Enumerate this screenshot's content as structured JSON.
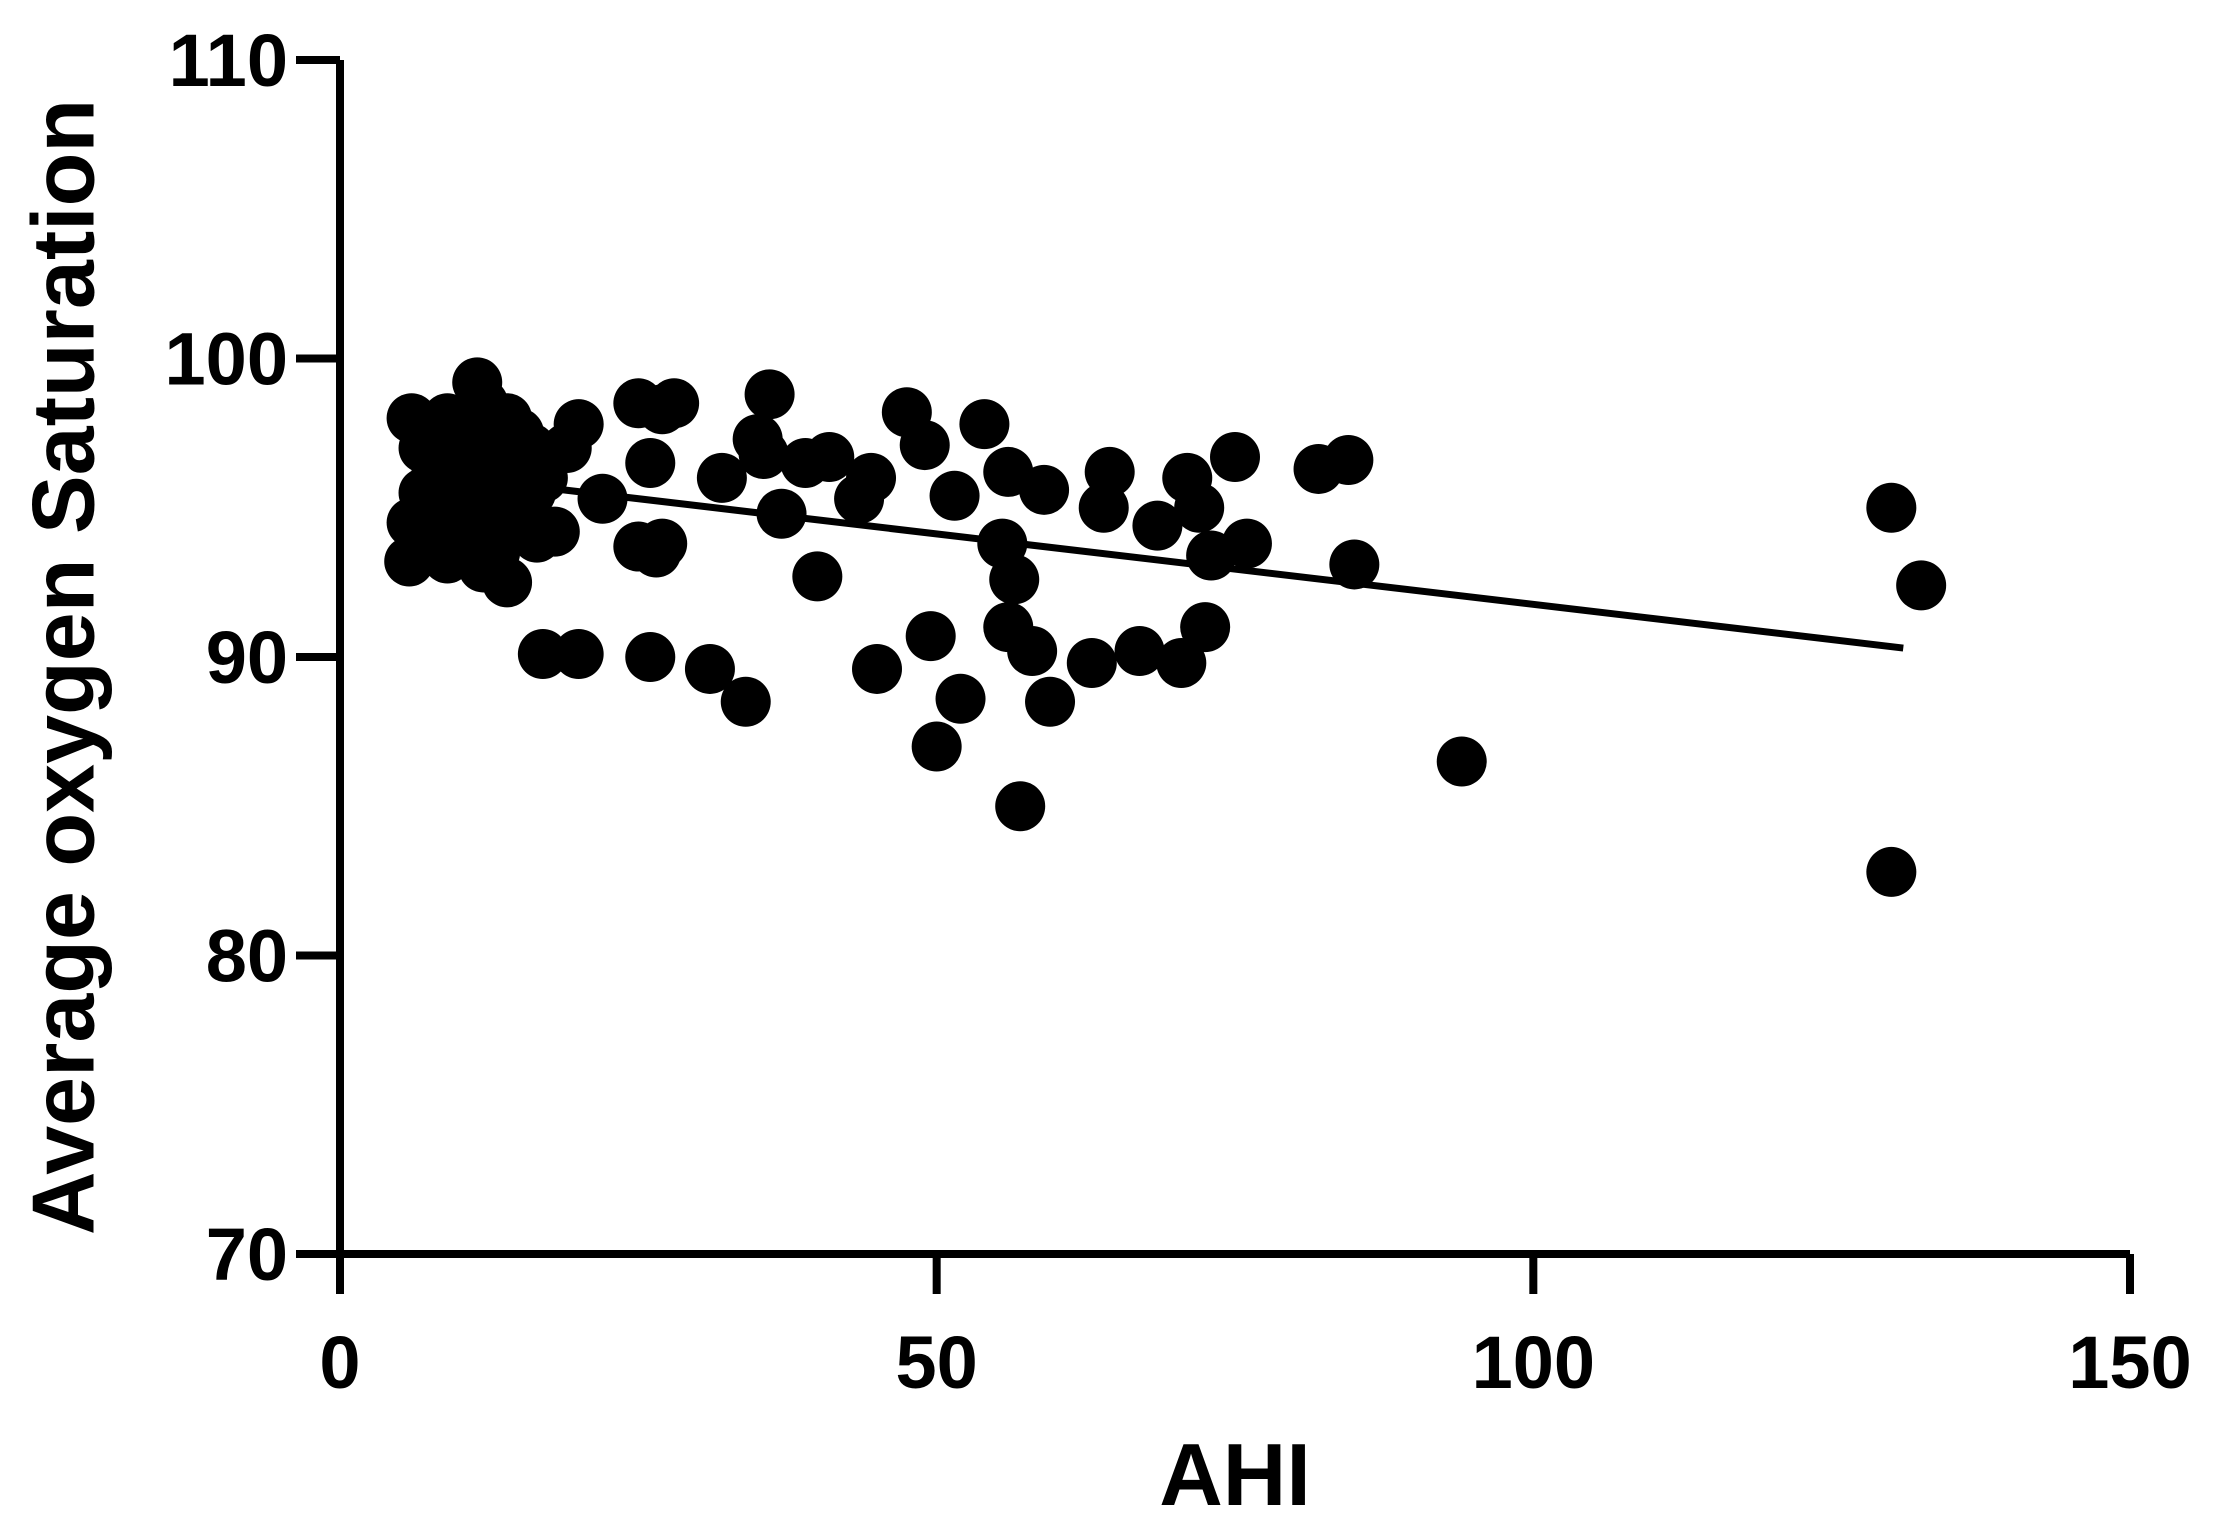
{
  "chart_data": {
    "type": "scatter",
    "title": "",
    "xlabel": "AHI",
    "ylabel": "Average oxygen Saturation",
    "xlim": [
      0,
      150
    ],
    "ylim": [
      70,
      110
    ],
    "x_ticks": [
      0,
      50,
      100,
      150
    ],
    "y_ticks": [
      70,
      80,
      90,
      100,
      110
    ],
    "x_tick_labels": [
      "0",
      "50",
      "100",
      "150"
    ],
    "y_tick_labels": [
      "70",
      "80",
      "90",
      "100",
      "110"
    ],
    "grid": false,
    "legend": "none",
    "marker_color": "#000000",
    "series": [
      {
        "points": [
          [
            6,
            98
          ],
          [
            7,
            97
          ],
          [
            8,
            96.5
          ],
          [
            9,
            98
          ],
          [
            10,
            96
          ],
          [
            11,
            97
          ],
          [
            11.5,
            99.2
          ],
          [
            12,
            98.5
          ],
          [
            13,
            97
          ],
          [
            14,
            98
          ],
          [
            15,
            97.5
          ],
          [
            16,
            97
          ],
          [
            7,
            95.5
          ],
          [
            8,
            95
          ],
          [
            9,
            96
          ],
          [
            10,
            95.5
          ],
          [
            11,
            96
          ],
          [
            12,
            95
          ],
          [
            13,
            96
          ],
          [
            14,
            95.5
          ],
          [
            15,
            96
          ],
          [
            16,
            95.5
          ],
          [
            17,
            96
          ],
          [
            6,
            94.5
          ],
          [
            8,
            94
          ],
          [
            10,
            94.5
          ],
          [
            12,
            94.5
          ],
          [
            13,
            94
          ],
          [
            14,
            94.5
          ],
          [
            5.8,
            93.2
          ],
          [
            9,
            93.3
          ],
          [
            10.5,
            93.5
          ],
          [
            12,
            93
          ],
          [
            13,
            93.5
          ],
          [
            14,
            92.5
          ],
          [
            16.5,
            94
          ],
          [
            18,
            94.2
          ],
          [
            19,
            97
          ],
          [
            20,
            97.8
          ],
          [
            22,
            95.3
          ],
          [
            25,
            98.5
          ],
          [
            26,
            96.5
          ],
          [
            27,
            98.3
          ],
          [
            28,
            98.5
          ],
          [
            25,
            93.7
          ],
          [
            26.5,
            93.5
          ],
          [
            27,
            93.8
          ],
          [
            17,
            90.1
          ],
          [
            20,
            90.1
          ],
          [
            26,
            90
          ],
          [
            31,
            89.6
          ],
          [
            32,
            96
          ],
          [
            34,
            88.5
          ],
          [
            35,
            97.3
          ],
          [
            35.5,
            96.8
          ],
          [
            36,
            98.8
          ],
          [
            37,
            94.8
          ],
          [
            39,
            96.5
          ],
          [
            40,
            92.7
          ],
          [
            41,
            96.7
          ],
          [
            43.5,
            95.3
          ],
          [
            44.5,
            96
          ],
          [
            45,
            89.6
          ],
          [
            47.5,
            98.2
          ],
          [
            49,
            97.1
          ],
          [
            49.5,
            90.7
          ],
          [
            50,
            87
          ],
          [
            51.5,
            95.4
          ],
          [
            52,
            88.6
          ],
          [
            54,
            97.8
          ],
          [
            55.5,
            93.8
          ],
          [
            56,
            96.2
          ],
          [
            56.5,
            92.6
          ],
          [
            56,
            91
          ],
          [
            57,
            85
          ],
          [
            58,
            90.2
          ],
          [
            59,
            95.6
          ],
          [
            59.5,
            88.5
          ],
          [
            63,
            89.8
          ],
          [
            64,
            95
          ],
          [
            64.5,
            96.2
          ],
          [
            67,
            90.2
          ],
          [
            68.5,
            94.4
          ],
          [
            70.5,
            89.8
          ],
          [
            71,
            96
          ],
          [
            72,
            95
          ],
          [
            72.5,
            91
          ],
          [
            73,
            93.4
          ],
          [
            75,
            96.7
          ],
          [
            76,
            93.8
          ],
          [
            82,
            96.3
          ],
          [
            84.5,
            96.6
          ],
          [
            85,
            93.1
          ],
          [
            94,
            86.5
          ],
          [
            130,
            95
          ],
          [
            130,
            82.8
          ],
          [
            132.5,
            92.4
          ]
        ]
      }
    ],
    "fit_line": {
      "x": [
        6,
        131
      ],
      "y": [
        96.2,
        90.3
      ]
    }
  }
}
